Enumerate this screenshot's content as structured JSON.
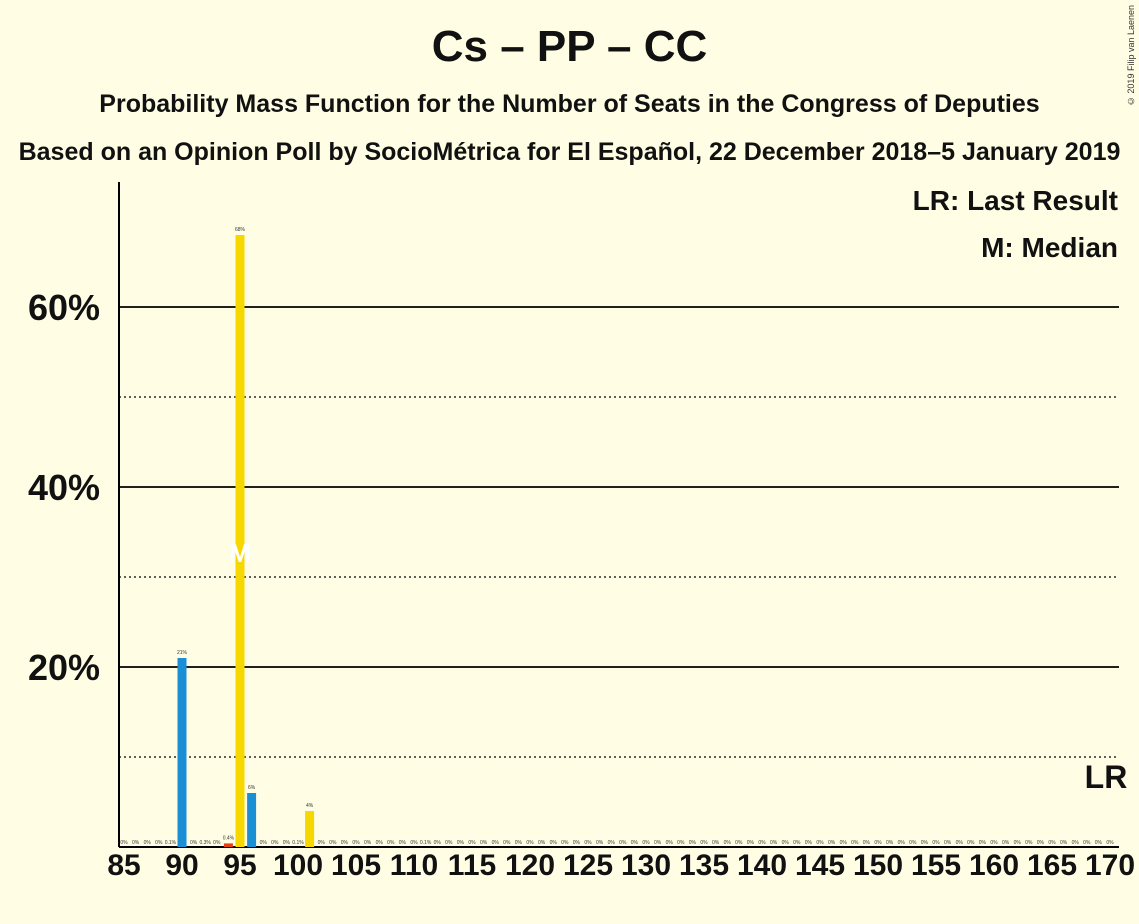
{
  "header": {
    "title": "Cs – PP – CC",
    "subtitle": "Probability Mass Function for the Number of Seats in the Congress of Deputies",
    "source": "Based on an Opinion Poll by SocioMétrica for El Español, 22 December 2018–5 January 2019",
    "copyright": "© 2019 Filip van Laenen"
  },
  "legend": {
    "last_result": "LR: Last Result",
    "median": "M: Median"
  },
  "chart_data": {
    "type": "bar",
    "title": "Cs – PP – CC",
    "x_min": 85,
    "x_max": 170,
    "ylim": [
      0,
      0.74
    ],
    "y_ticks": [
      {
        "value": 0.2,
        "label": "20%"
      },
      {
        "value": 0.4,
        "label": "40%"
      },
      {
        "value": 0.6,
        "label": "60%"
      }
    ],
    "y_minor": [
      0.1,
      0.3,
      0.5
    ],
    "x_ticks": [
      85,
      90,
      95,
      100,
      105,
      110,
      115,
      120,
      125,
      130,
      135,
      140,
      145,
      150,
      155,
      160,
      165,
      170
    ],
    "colors": {
      "blue": "#1B8FD6",
      "yellow": "#F6D700",
      "red": "#E4400F"
    },
    "bars": [
      {
        "seats": 90,
        "value": 0.21,
        "color": "#1B8FD6",
        "label": "21%"
      },
      {
        "seats": 94,
        "value": 0.004,
        "color": "#E4400F",
        "label": "0.4%"
      },
      {
        "seats": 95,
        "value": 0.68,
        "color": "#F6D700",
        "label": "68%"
      },
      {
        "seats": 96,
        "value": 0.06,
        "color": "#1B8FD6",
        "label": "6%"
      },
      {
        "seats": 101,
        "value": 0.04,
        "color": "#F6D700",
        "label": "4%"
      }
    ],
    "small_labels": [
      {
        "seats": 85,
        "label": "0%"
      },
      {
        "seats": 86,
        "label": "0%"
      },
      {
        "seats": 87,
        "label": "0%"
      },
      {
        "seats": 88,
        "label": "0%"
      },
      {
        "seats": 89,
        "label": "0.1%"
      },
      {
        "seats": 91,
        "label": "0%"
      },
      {
        "seats": 92,
        "label": "0.3%"
      },
      {
        "seats": 93,
        "label": "0%"
      },
      {
        "seats": 97,
        "label": "0%"
      },
      {
        "seats": 98,
        "label": "0%"
      },
      {
        "seats": 99,
        "label": "0%"
      },
      {
        "seats": 100,
        "label": "0.1%"
      },
      {
        "seats": 102,
        "label": "0%"
      },
      {
        "seats": 103,
        "label": "0%"
      },
      {
        "seats": 104,
        "label": "0%"
      },
      {
        "seats": 105,
        "label": "0%"
      },
      {
        "seats": 106,
        "label": "0%"
      },
      {
        "seats": 107,
        "label": "0%"
      },
      {
        "seats": 108,
        "label": "0%"
      },
      {
        "seats": 109,
        "label": "0%"
      },
      {
        "seats": 110,
        "label": "0%"
      },
      {
        "seats": 111,
        "label": "0.1%"
      },
      {
        "seats": 112,
        "label": "0%"
      },
      {
        "seats": 113,
        "label": "0%"
      },
      {
        "seats": 114,
        "label": "0%"
      },
      {
        "seats": 115,
        "label": "0%"
      },
      {
        "seats": 116,
        "label": "0%"
      },
      {
        "seats": 117,
        "label": "0%"
      },
      {
        "seats": 118,
        "label": "0%"
      },
      {
        "seats": 119,
        "label": "0%"
      },
      {
        "seats": 120,
        "label": "0%"
      },
      {
        "seats": 121,
        "label": "0%"
      },
      {
        "seats": 122,
        "label": "0%"
      },
      {
        "seats": 123,
        "label": "0%"
      },
      {
        "seats": 124,
        "label": "0%"
      },
      {
        "seats": 125,
        "label": "0%"
      },
      {
        "seats": 126,
        "label": "0%"
      },
      {
        "seats": 127,
        "label": "0%"
      },
      {
        "seats": 128,
        "label": "0%"
      },
      {
        "seats": 129,
        "label": "0%"
      },
      {
        "seats": 130,
        "label": "0%"
      },
      {
        "seats": 131,
        "label": "0%"
      },
      {
        "seats": 132,
        "label": "0%"
      },
      {
        "seats": 133,
        "label": "0%"
      },
      {
        "seats": 134,
        "label": "0%"
      },
      {
        "seats": 135,
        "label": "0%"
      },
      {
        "seats": 136,
        "label": "0%"
      },
      {
        "seats": 137,
        "label": "0%"
      },
      {
        "seats": 138,
        "label": "0%"
      },
      {
        "seats": 139,
        "label": "0%"
      },
      {
        "seats": 140,
        "label": "0%"
      },
      {
        "seats": 141,
        "label": "0%"
      },
      {
        "seats": 142,
        "label": "0%"
      },
      {
        "seats": 143,
        "label": "0%"
      },
      {
        "seats": 144,
        "label": "0%"
      },
      {
        "seats": 145,
        "label": "0%"
      },
      {
        "seats": 146,
        "label": "0%"
      },
      {
        "seats": 147,
        "label": "0%"
      },
      {
        "seats": 148,
        "label": "0%"
      },
      {
        "seats": 149,
        "label": "0%"
      },
      {
        "seats": 150,
        "label": "0%"
      },
      {
        "seats": 151,
        "label": "0%"
      },
      {
        "seats": 152,
        "label": "0%"
      },
      {
        "seats": 153,
        "label": "0%"
      },
      {
        "seats": 154,
        "label": "0%"
      },
      {
        "seats": 155,
        "label": "0%"
      },
      {
        "seats": 156,
        "label": "0%"
      },
      {
        "seats": 157,
        "label": "0%"
      },
      {
        "seats": 158,
        "label": "0%"
      },
      {
        "seats": 159,
        "label": "0%"
      },
      {
        "seats": 160,
        "label": "0%"
      },
      {
        "seats": 161,
        "label": "0%"
      },
      {
        "seats": 162,
        "label": "0%"
      },
      {
        "seats": 163,
        "label": "0%"
      },
      {
        "seats": 164,
        "label": "0%"
      },
      {
        "seats": 165,
        "label": "0%"
      },
      {
        "seats": 166,
        "label": "0%"
      },
      {
        "seats": 167,
        "label": "0%"
      },
      {
        "seats": 168,
        "label": "0%"
      },
      {
        "seats": 169,
        "label": "0%"
      },
      {
        "seats": 170,
        "label": "0%"
      }
    ],
    "median": {
      "seats": 95,
      "label": "M",
      "value": 0.33
    },
    "last_result": {
      "seats": 170,
      "label": "LR",
      "value": 0.1
    }
  }
}
